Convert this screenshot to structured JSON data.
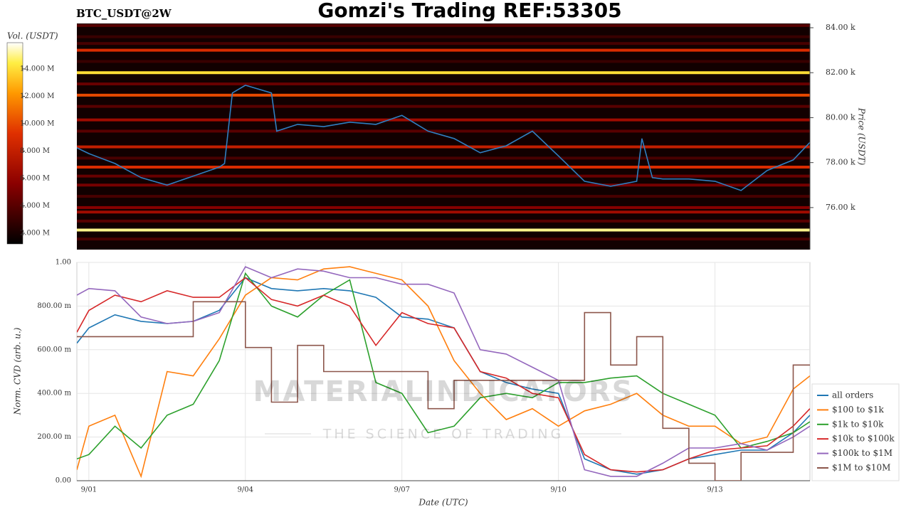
{
  "chart_data": [
    {
      "type": "heatmap",
      "title": "Gomzi's Trading REF:53305",
      "subtitle": "BTC_USDT@2W",
      "y2label": "Price (USDT)",
      "colorbar_label": "Vol. (USDT)",
      "xlim": [
        0.77,
        14.82
      ],
      "y2lim": [
        74130,
        84190
      ],
      "y2ticks": [
        {
          "value": 76000,
          "label": "76.00 k"
        },
        {
          "value": 78000,
          "label": "78.00 k"
        },
        {
          "value": 80000,
          "label": "80.00 k"
        },
        {
          "value": 82000,
          "label": "82.00 k"
        },
        {
          "value": 84000,
          "label": "84.00 k"
        }
      ],
      "clim": [
        1220000,
        15920000
      ],
      "cticks": [
        {
          "value": 2000000,
          "label": "2.000 M"
        },
        {
          "value": 4000000,
          "label": "4.000 M"
        },
        {
          "value": 6000000,
          "label": "6.000 M"
        },
        {
          "value": 8000000,
          "label": "8.000 M"
        },
        {
          "value": 10000000,
          "label": "10.000 M"
        },
        {
          "value": 12000000,
          "label": "12.000 M"
        },
        {
          "value": 14000000,
          "label": "14.000 M"
        }
      ],
      "levels": [
        84100,
        83600,
        83300,
        83000,
        82500,
        82000,
        81500,
        81000,
        80500,
        79900,
        79400,
        78700,
        78200,
        77800,
        77400,
        77000,
        76500,
        76000,
        75800,
        75400,
        75000,
        74600
      ],
      "volumes": [
        4000000,
        3000000,
        3500000,
        9000000,
        3000000,
        14000000,
        4500000,
        10000000,
        4000000,
        6500000,
        4000000,
        8000000,
        3500000,
        9000000,
        4500000,
        5000000,
        3500000,
        5500000,
        6500000,
        4000000,
        15000000,
        3500000
      ],
      "series": [
        {
          "name": "price",
          "color": "#2f7fc1",
          "axis": "y2",
          "x": [
            0.77,
            1.0,
            1.5,
            2.0,
            2.5,
            3.0,
            3.5,
            3.6,
            3.75,
            4.0,
            4.5,
            4.6,
            5.0,
            5.5,
            6.0,
            6.5,
            7.0,
            7.5,
            8.0,
            8.5,
            9.0,
            9.5,
            10.0,
            10.5,
            11.0,
            11.5,
            11.6,
            11.8,
            12.0,
            12.5,
            13.0,
            13.5,
            14.0,
            14.5,
            14.82
          ],
          "values": [
            78660,
            78400,
            77960,
            77330,
            77000,
            77400,
            77800,
            77960,
            81100,
            81440,
            81100,
            79400,
            79700,
            79600,
            79800,
            79700,
            80100,
            79400,
            79070,
            78440,
            78750,
            79400,
            78300,
            77170,
            76950,
            77170,
            79070,
            77330,
            77270,
            77270,
            77170,
            76760,
            77650,
            78120,
            78900
          ]
        }
      ]
    },
    {
      "type": "line",
      "xlabel": "Date (UTC)",
      "ylabel": "Norm. CVD (arb. u.)",
      "xlim": [
        0.77,
        14.82
      ],
      "ylim": [
        0,
        1
      ],
      "xticks": [
        {
          "value": 1,
          "label": "9/01"
        },
        {
          "value": 4,
          "label": "9/04"
        },
        {
          "value": 7,
          "label": "9/07"
        },
        {
          "value": 10,
          "label": "9/10"
        },
        {
          "value": 13,
          "label": "9/13"
        }
      ],
      "yticks": [
        {
          "value": 0,
          "label": "0.00"
        },
        {
          "value": 0.2,
          "label": "200.00 m"
        },
        {
          "value": 0.4,
          "label": "400.00 m"
        },
        {
          "value": 0.6,
          "label": "600.00 m"
        },
        {
          "value": 0.8,
          "label": "800.00 m"
        },
        {
          "value": 1,
          "label": "1.00"
        }
      ],
      "grid": true,
      "legend": "bottom-right",
      "x": [
        0.77,
        1,
        1.5,
        2,
        2.5,
        3,
        3.5,
        4,
        4.5,
        5,
        5.5,
        6,
        6.5,
        7,
        7.5,
        8,
        8.5,
        9,
        9.5,
        10,
        10.5,
        11,
        11.5,
        12,
        12.5,
        13,
        13.5,
        14,
        14.5,
        14.82
      ],
      "series": [
        {
          "name": "all orders",
          "color": "#1f77b4",
          "values": [
            0.63,
            0.7,
            0.76,
            0.73,
            0.72,
            0.73,
            0.78,
            0.93,
            0.88,
            0.87,
            0.88,
            0.87,
            0.84,
            0.75,
            0.74,
            0.7,
            0.5,
            0.45,
            0.42,
            0.4,
            0.1,
            0.05,
            0.03,
            0.05,
            0.1,
            0.12,
            0.14,
            0.14,
            0.22,
            0.3
          ]
        },
        {
          "name": "$100 to $1k",
          "color": "#ff7f0e",
          "values": [
            0.05,
            0.25,
            0.3,
            0.02,
            0.5,
            0.48,
            0.65,
            0.85,
            0.93,
            0.92,
            0.97,
            0.98,
            0.95,
            0.92,
            0.8,
            0.55,
            0.4,
            0.28,
            0.33,
            0.25,
            0.32,
            0.35,
            0.4,
            0.3,
            0.25,
            0.25,
            0.17,
            0.2,
            0.42,
            0.48
          ]
        },
        {
          "name": "$1k to $10k",
          "color": "#2ca02c",
          "values": [
            0.1,
            0.12,
            0.25,
            0.15,
            0.3,
            0.35,
            0.55,
            0.95,
            0.8,
            0.75,
            0.85,
            0.92,
            0.45,
            0.4,
            0.22,
            0.25,
            0.38,
            0.4,
            0.38,
            0.45,
            0.45,
            0.47,
            0.48,
            0.4,
            0.35,
            0.3,
            0.15,
            0.18,
            0.22,
            0.27
          ]
        },
        {
          "name": "$10k to $100k",
          "color": "#d62728",
          "values": [
            0.68,
            0.78,
            0.85,
            0.82,
            0.87,
            0.84,
            0.84,
            0.93,
            0.83,
            0.8,
            0.85,
            0.8,
            0.62,
            0.77,
            0.72,
            0.7,
            0.5,
            0.47,
            0.4,
            0.38,
            0.12,
            0.05,
            0.04,
            0.05,
            0.1,
            0.14,
            0.15,
            0.16,
            0.25,
            0.33
          ]
        },
        {
          "name": "$100k to $1M",
          "color": "#9467bd",
          "values": [
            0.85,
            0.88,
            0.87,
            0.75,
            0.72,
            0.73,
            0.77,
            0.98,
            0.93,
            0.97,
            0.96,
            0.93,
            0.93,
            0.9,
            0.9,
            0.86,
            0.6,
            0.58,
            0.52,
            0.46,
            0.05,
            0.02,
            0.02,
            0.08,
            0.15,
            0.15,
            0.17,
            0.14,
            0.2,
            0.25
          ]
        },
        {
          "name": "$1M to $10M",
          "color": "#8c564b",
          "step": true,
          "values": [
            0.66,
            0.66,
            0.66,
            0.66,
            0.66,
            0.82,
            0.82,
            0.61,
            0.36,
            0.62,
            0.5,
            0.5,
            0.5,
            0.5,
            0.33,
            0.46,
            0.46,
            0.46,
            0.46,
            0.46,
            0.77,
            0.53,
            0.66,
            0.24,
            0.08,
            0.0,
            0.13,
            0.13,
            0.53,
            0.53
          ]
        }
      ]
    }
  ],
  "watermark": {
    "brand": "MATERIALINDICATORS",
    "tagline": "THE SCIENCE OF TRADING"
  }
}
